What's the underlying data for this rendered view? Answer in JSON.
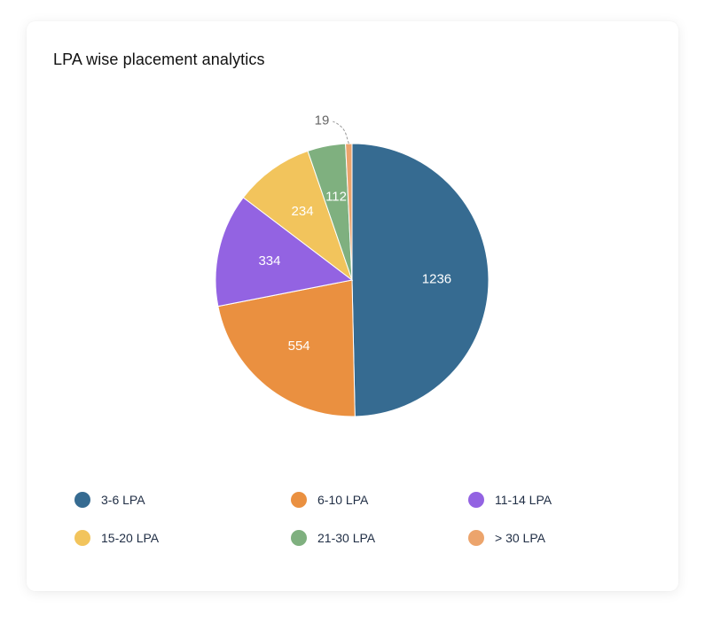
{
  "card": {
    "title": "LPA wise placement analytics"
  },
  "chart_data": {
    "type": "pie",
    "title": "LPA wise placement analytics",
    "categories": [
      "3-6 LPA",
      "6-10 LPA",
      "11-14 LPA",
      "15-20 LPA",
      "21-30 LPA",
      "> 30 LPA"
    ],
    "values": [
      1236,
      554,
      334,
      234,
      112,
      19
    ],
    "colors": [
      "#366b91",
      "#ea9040",
      "#9363e2",
      "#f2c45c",
      "#7fb07f",
      "#eca46c"
    ],
    "legend_position": "bottom",
    "data_labels": true,
    "start": "top",
    "direction": "clockwise"
  }
}
